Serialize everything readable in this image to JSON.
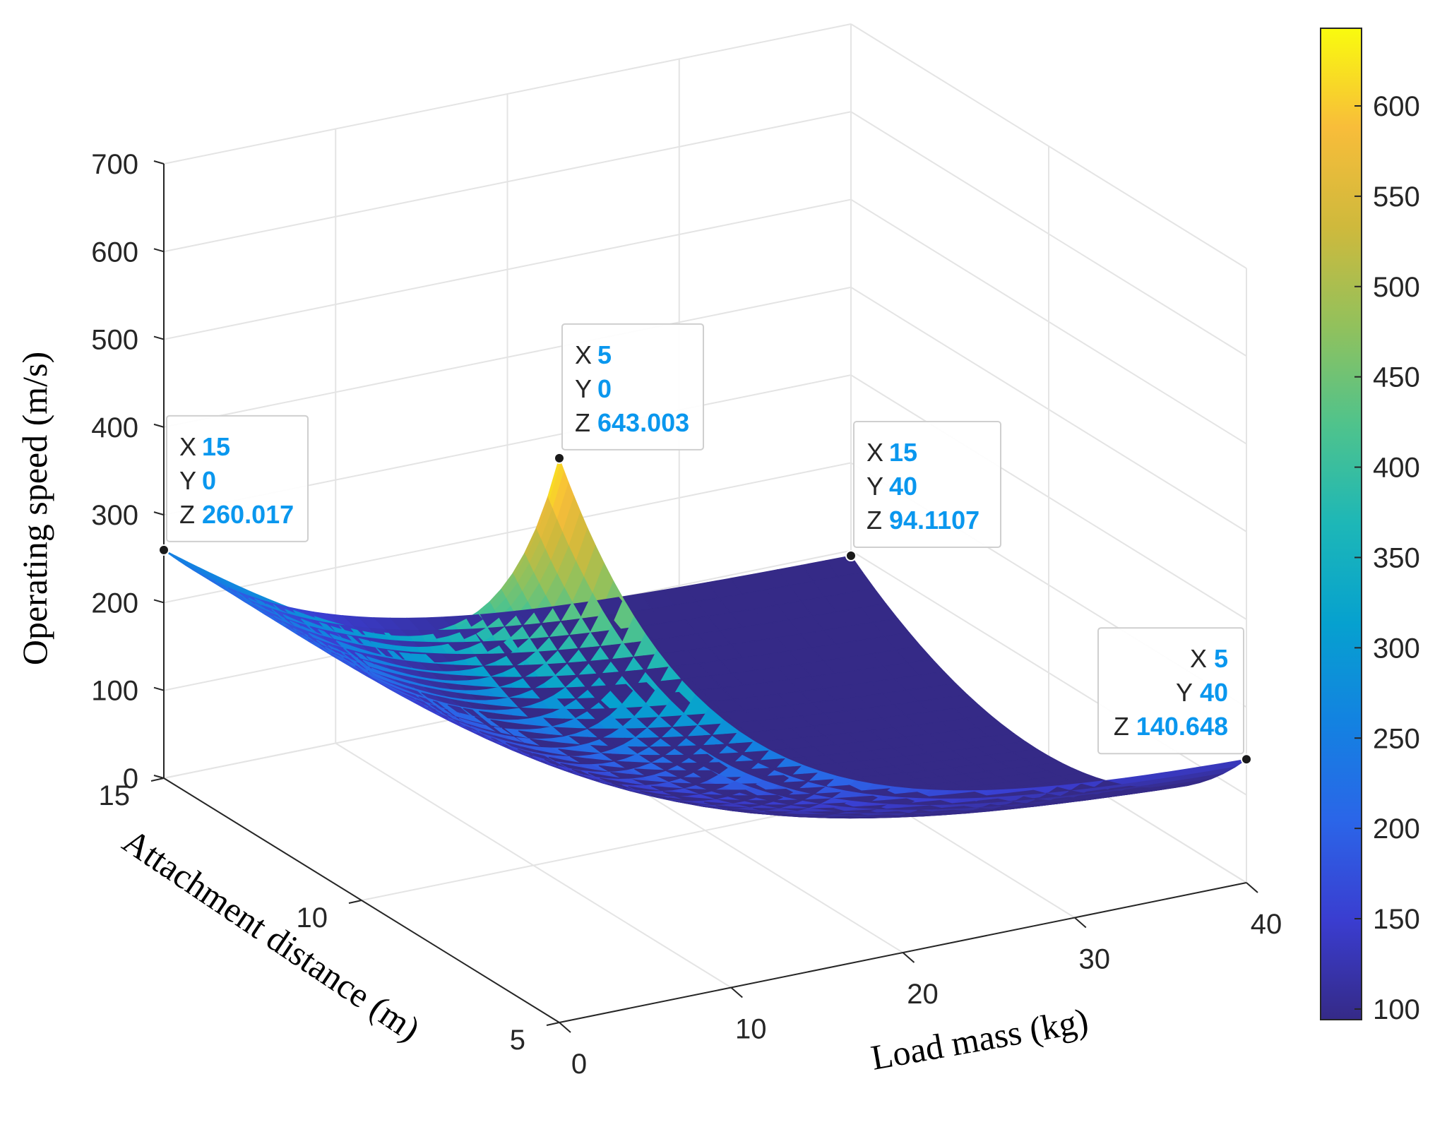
{
  "chart_data": {
    "type": "surface",
    "xlabel": "Attachment distance  (m)",
    "ylabel": "Load mass (kg)",
    "zlabel": "Operating speed (m/s)",
    "x_ticks": [
      "15",
      "10",
      "5"
    ],
    "x_tick_values": [
      15,
      10,
      5
    ],
    "y_ticks": [
      "0",
      "10",
      "20",
      "30",
      "40"
    ],
    "y_tick_values": [
      0,
      10,
      20,
      30,
      40
    ],
    "z_ticks": [
      "0",
      "100",
      "200",
      "300",
      "400",
      "500",
      "600",
      "700"
    ],
    "z_tick_values": [
      0,
      100,
      200,
      300,
      400,
      500,
      600,
      700
    ],
    "xlim": [
      5,
      15
    ],
    "ylim": [
      0,
      40
    ],
    "zlim": [
      0,
      700
    ],
    "grid": true,
    "colormap": "parula",
    "colorbar": {
      "ticks": [
        "100",
        "150",
        "200",
        "250",
        "300",
        "350",
        "400",
        "450",
        "500",
        "550",
        "600"
      ],
      "tick_values": [
        100,
        150,
        200,
        250,
        300,
        350,
        400,
        450,
        500,
        550,
        600
      ],
      "range": [
        94.1107,
        643.003
      ]
    },
    "corners": [
      {
        "x": 15,
        "y": 0,
        "z": 260.017
      },
      {
        "x": 5,
        "y": 0,
        "z": 643.003
      },
      {
        "x": 15,
        "y": 40,
        "z": 94.1107
      },
      {
        "x": 5,
        "y": 40,
        "z": 140.648
      }
    ],
    "datatips": [
      {
        "x_key": "X",
        "y_key": "Y",
        "z_key": "Z",
        "x": "15",
        "y": "0",
        "z": "260.017",
        "align": "left"
      },
      {
        "x_key": "X",
        "y_key": "Y",
        "z_key": "Z",
        "x": "5",
        "y": "0",
        "z": "643.003",
        "align": "left"
      },
      {
        "x_key": "X",
        "y_key": "Y",
        "z_key": "Z",
        "x": "15",
        "y": "40",
        "z": "94.1107",
        "align": "left"
      },
      {
        "x_key": "X",
        "y_key": "Y",
        "z_key": "Z",
        "x": "5",
        "y": "40",
        "z": "140.648",
        "align": "right"
      }
    ]
  }
}
